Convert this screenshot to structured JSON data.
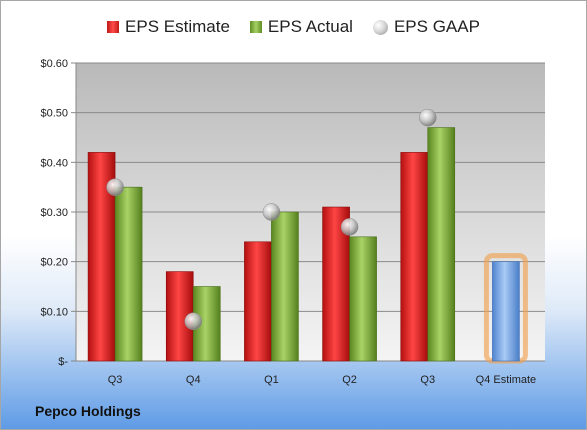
{
  "company": "Pepco Holdings",
  "legend": {
    "estimate": "EPS Estimate",
    "actual": "EPS Actual",
    "gaap": "EPS GAAP"
  },
  "colors": {
    "estimate": "#e02020",
    "actual": "#8db348",
    "gaap": "#c8c8c8",
    "forecast": "#7aa9e6",
    "forecast_glow": "#f0a050"
  },
  "chart_data": {
    "type": "bar",
    "categories": [
      "Q3",
      "Q4",
      "Q1",
      "Q2",
      "Q3",
      "Q4 Estimate"
    ],
    "y_ticks": [
      "$-",
      "$0.10",
      "$0.20",
      "$0.30",
      "$0.40",
      "$0.50",
      "$0.60"
    ],
    "ylim": [
      0,
      0.6
    ],
    "grid": true,
    "legend_position": "top",
    "series": [
      {
        "name": "EPS Estimate",
        "values": [
          0.42,
          0.18,
          0.24,
          0.31,
          0.42,
          null
        ]
      },
      {
        "name": "EPS Actual",
        "values": [
          0.35,
          0.15,
          0.3,
          0.25,
          0.47,
          null
        ]
      },
      {
        "name": "EPS GAAP",
        "values": [
          0.35,
          0.08,
          0.3,
          0.27,
          0.49,
          null
        ]
      }
    ],
    "forecast": {
      "category": "Q4 Estimate",
      "value": 0.2
    }
  }
}
